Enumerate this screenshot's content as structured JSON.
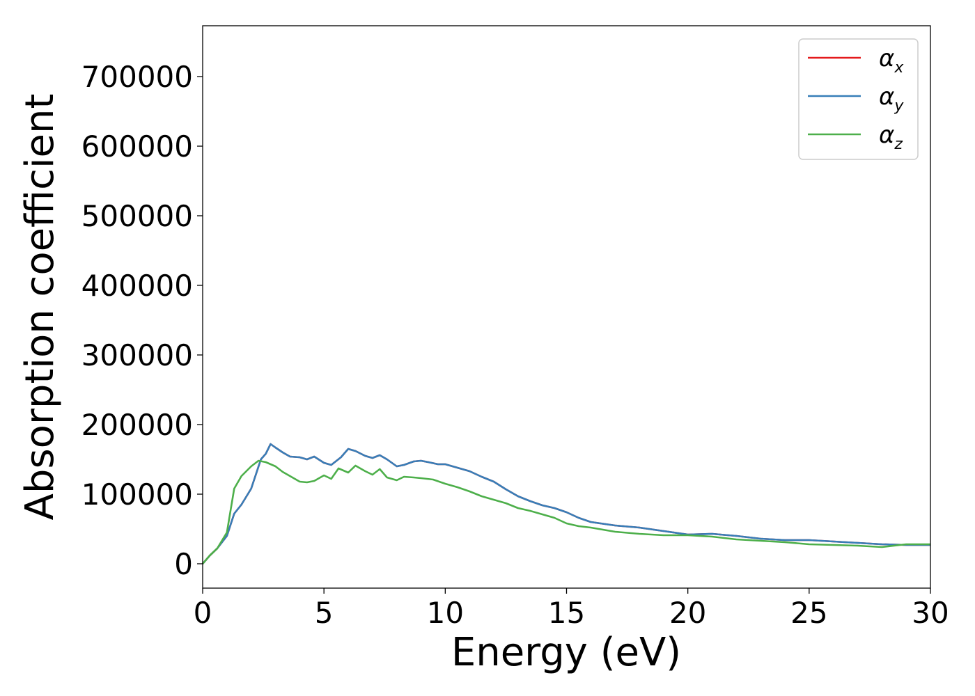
{
  "chart_data": {
    "type": "line",
    "title": "",
    "xlabel": "Energy (eV)",
    "ylabel": "Absorption coefficient",
    "xlim": [
      0,
      30
    ],
    "ylim": [
      -35000,
      773000
    ],
    "xticks": [
      0,
      5,
      10,
      15,
      20,
      25,
      30
    ],
    "yticks": [
      0,
      100000,
      200000,
      300000,
      400000,
      500000,
      600000,
      700000
    ],
    "grid": false,
    "legend_position": "top-right",
    "series": [
      {
        "name": "α_x",
        "legend_base": "α",
        "legend_sub": "x",
        "color": "#e41a1c",
        "x": [
          0,
          0.3,
          0.6,
          1.0,
          1.3,
          1.6,
          2.0,
          2.4,
          2.6,
          2.8,
          3.0,
          3.3,
          3.6,
          4.0,
          4.3,
          4.6,
          5.0,
          5.3,
          5.7,
          6.0,
          6.3,
          6.7,
          7.0,
          7.3,
          7.6,
          8.0,
          8.3,
          8.7,
          9.0,
          9.3,
          9.7,
          10.0,
          10.5,
          11.0,
          11.5,
          12.0,
          12.5,
          13.0,
          13.5,
          14.0,
          14.5,
          15.0,
          15.5,
          16.0,
          17.0,
          18.0,
          19.0,
          20.0,
          21.0,
          22.0,
          23.0,
          24.0,
          25.0,
          26.0,
          27.0,
          28.0,
          29.0,
          30.0
        ],
        "y": [
          0,
          12000,
          22000,
          40000,
          72000,
          85000,
          108000,
          150000,
          158000,
          172000,
          167000,
          160000,
          154000,
          153000,
          150000,
          154000,
          145000,
          142000,
          153000,
          165000,
          162000,
          155000,
          152000,
          156000,
          150000,
          140000,
          142000,
          147000,
          148000,
          146000,
          143000,
          143000,
          138000,
          133000,
          125000,
          118000,
          107000,
          97000,
          90000,
          84000,
          80000,
          74000,
          66000,
          60000,
          55000,
          52000,
          47000,
          42000,
          43000,
          40000,
          36000,
          34000,
          34000,
          32000,
          30000,
          28000,
          27000,
          27000
        ]
      },
      {
        "name": "α_y",
        "legend_base": "α",
        "legend_sub": "y",
        "color": "#377eb8",
        "x": [
          0,
          0.3,
          0.6,
          1.0,
          1.3,
          1.6,
          2.0,
          2.4,
          2.6,
          2.8,
          3.0,
          3.3,
          3.6,
          4.0,
          4.3,
          4.6,
          5.0,
          5.3,
          5.7,
          6.0,
          6.3,
          6.7,
          7.0,
          7.3,
          7.6,
          8.0,
          8.3,
          8.7,
          9.0,
          9.3,
          9.7,
          10.0,
          10.5,
          11.0,
          11.5,
          12.0,
          12.5,
          13.0,
          13.5,
          14.0,
          14.5,
          15.0,
          15.5,
          16.0,
          17.0,
          18.0,
          19.0,
          20.0,
          21.0,
          22.0,
          23.0,
          24.0,
          25.0,
          26.0,
          27.0,
          28.0,
          29.0,
          30.0
        ],
        "y": [
          0,
          12000,
          22000,
          40000,
          72000,
          85000,
          108000,
          150000,
          158000,
          172000,
          167000,
          160000,
          154000,
          153000,
          150000,
          154000,
          145000,
          142000,
          153000,
          165000,
          162000,
          155000,
          152000,
          156000,
          150000,
          140000,
          142000,
          147000,
          148000,
          146000,
          143000,
          143000,
          138000,
          133000,
          125000,
          118000,
          107000,
          97000,
          90000,
          84000,
          80000,
          74000,
          66000,
          60000,
          55000,
          52000,
          47000,
          42000,
          43000,
          40000,
          36000,
          34000,
          34000,
          32000,
          30000,
          28000,
          27000,
          27000
        ]
      },
      {
        "name": "α_z",
        "legend_base": "α",
        "legend_sub": "z",
        "color": "#4daf4a",
        "x": [
          0,
          0.3,
          0.6,
          1.0,
          1.3,
          1.6,
          2.0,
          2.3,
          2.6,
          3.0,
          3.3,
          3.6,
          4.0,
          4.3,
          4.6,
          5.0,
          5.3,
          5.6,
          6.0,
          6.3,
          6.7,
          7.0,
          7.3,
          7.6,
          8.0,
          8.3,
          8.7,
          9.0,
          9.5,
          10.0,
          10.5,
          11.0,
          11.5,
          12.0,
          12.5,
          13.0,
          13.5,
          14.0,
          14.5,
          15.0,
          15.5,
          16.0,
          17.0,
          18.0,
          19.0,
          20.0,
          21.0,
          22.0,
          23.0,
          24.0,
          25.0,
          26.0,
          27.0,
          28.0,
          29.0,
          30.0
        ],
        "y": [
          0,
          12000,
          22000,
          45000,
          108000,
          126000,
          140000,
          148000,
          146000,
          140000,
          132000,
          126000,
          118000,
          117000,
          119000,
          127000,
          122000,
          137000,
          131000,
          141000,
          133000,
          128000,
          136000,
          124000,
          120000,
          125000,
          124000,
          123000,
          121000,
          115000,
          110000,
          104000,
          97000,
          92000,
          87000,
          80000,
          76000,
          71000,
          66000,
          58000,
          54000,
          52000,
          46000,
          43000,
          41000,
          41000,
          39000,
          35000,
          33000,
          31000,
          28000,
          27000,
          26000,
          24000,
          28000,
          28000
        ]
      }
    ]
  }
}
